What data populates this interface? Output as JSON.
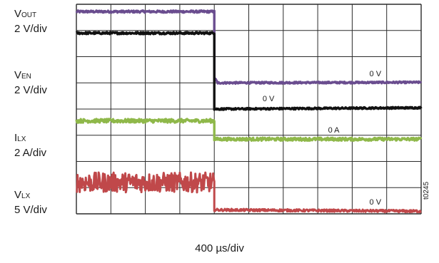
{
  "chart_data": {
    "type": "line",
    "title": "",
    "xlabel": "400 µs/div",
    "ylabel": "",
    "grid": true,
    "x_divisions": 10,
    "y_divisions": 8,
    "x_range_div": [
      0,
      10
    ],
    "y_range_div": [
      0,
      8
    ],
    "switch_time_div": 4.0,
    "channels": [
      {
        "name_main": "V",
        "name_sub": "OUT",
        "scale": "2 V/div",
        "color": "#6a4d8f",
        "x_div": [
          0,
          4.0,
          4.0,
          4.1,
          10
        ],
        "y_div": [
          7.72,
          7.72,
          5.2,
          5.0,
          5.02
        ],
        "zero_label": "0 V",
        "noise": 0.04
      },
      {
        "name_main": "V",
        "name_sub": "EN",
        "scale": "2 V/div",
        "color": "#111111",
        "x_div": [
          0,
          4.0,
          4.0,
          10
        ],
        "y_div": [
          6.9,
          6.9,
          4.0,
          4.05
        ],
        "zero_label": "0 V",
        "noise": 0.04
      },
      {
        "name_main": "I",
        "name_sub": "LX",
        "scale": "2 A/div",
        "color": "#8fb84a",
        "x_div": [
          0,
          4.0,
          4.0,
          10
        ],
        "y_div": [
          3.55,
          3.55,
          2.85,
          2.85
        ],
        "zero_label": "0 A",
        "noise": 0.07
      },
      {
        "name_main": "V",
        "name_sub": "LX",
        "scale": "5 V/div",
        "color": "#c0484a",
        "x_div": [
          0,
          4.0,
          4.0,
          10
        ],
        "y_div": [
          1.2,
          1.2,
          0.15,
          0.1
        ],
        "zero_label": "0 V",
        "noise": 0.38
      }
    ]
  },
  "figure_id": "t0245"
}
